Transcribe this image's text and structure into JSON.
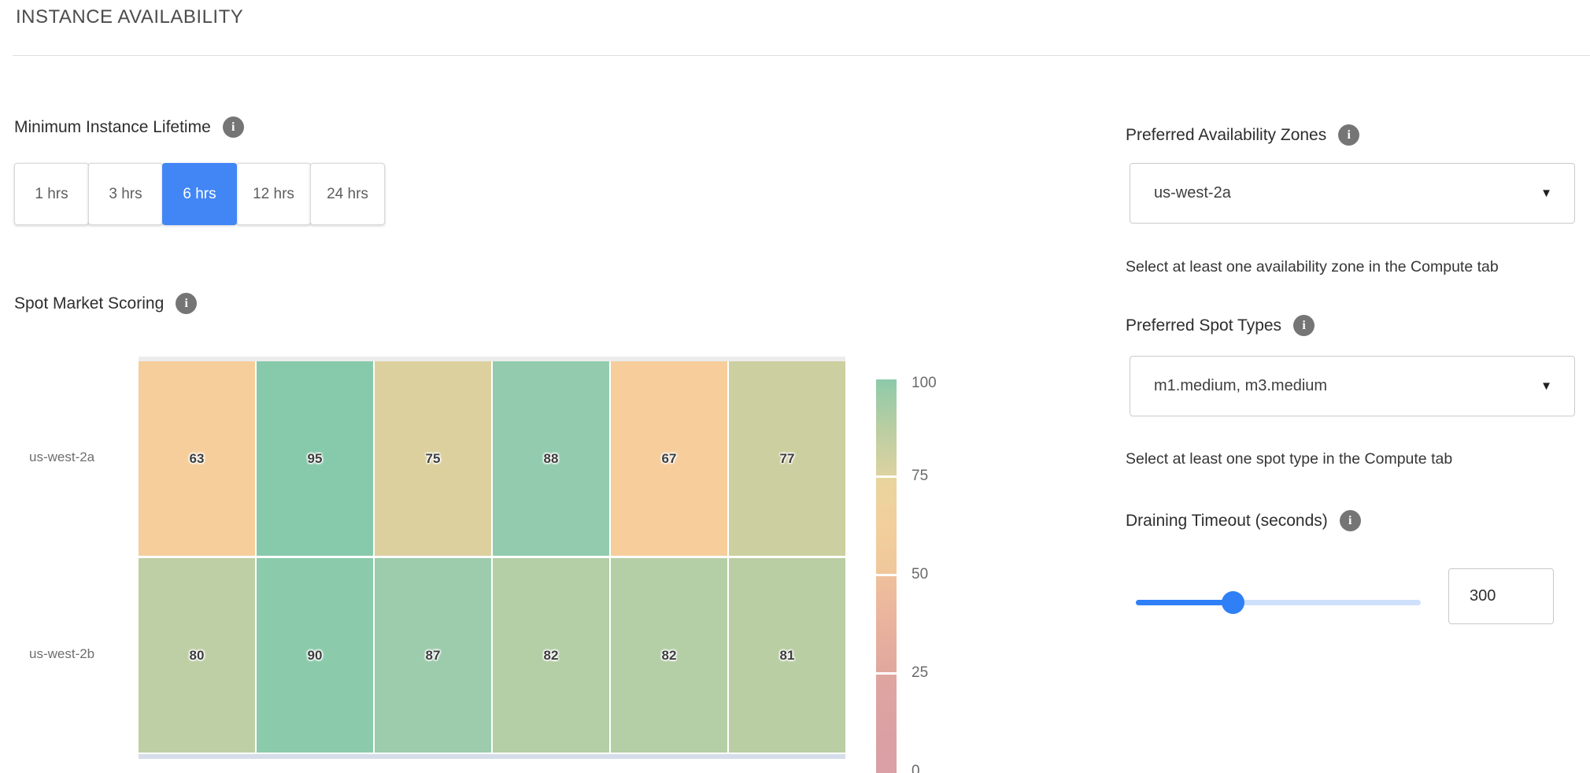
{
  "header": {
    "title": "INSTANCE AVAILABILITY"
  },
  "minimum_instance_lifetime": {
    "label": "Minimum Instance Lifetime",
    "options": [
      {
        "label": "1 hrs",
        "selected": false
      },
      {
        "label": "3 hrs",
        "selected": false
      },
      {
        "label": "6 hrs",
        "selected": true
      },
      {
        "label": "12 hrs",
        "selected": false
      },
      {
        "label": "24 hrs",
        "selected": false
      }
    ]
  },
  "spot_market_scoring": {
    "label": "Spot Market Scoring"
  },
  "chart_data": {
    "type": "heatmap",
    "title": "Spot Market Scoring",
    "rows": [
      "us-west-2a",
      "us-west-2b"
    ],
    "values": [
      [
        63,
        95,
        75,
        88,
        67,
        77
      ],
      [
        80,
        90,
        87,
        82,
        82,
        81
      ]
    ],
    "cell_colors": [
      [
        "#F6CE9B",
        "#87C9AB",
        "#DCD09F",
        "#92CBAE",
        "#F6CD9B",
        "#CCCF9F"
      ],
      [
        "#BECFA5",
        "#8BCBAC",
        "#9CCCAC",
        "#B4CEA6",
        "#B4CEA6",
        "#B9CEA3"
      ]
    ],
    "value_range": [
      0,
      100
    ],
    "colorbar": {
      "ticks": [
        "100",
        "75",
        "50",
        "25",
        "0"
      ],
      "segments": [
        [
          "#8DCAAA",
          "#B9CEA2",
          "#DCD2A0"
        ],
        [
          "#E8D49E",
          "#F2CF9C",
          "#F0C79B"
        ],
        [
          "#EFC09C",
          "#E9B29D",
          "#E0A89E"
        ],
        [
          "#DFA6A0",
          "#DBA0A4",
          "#D89FA6"
        ]
      ]
    }
  },
  "preferred_availability_zones": {
    "label": "Preferred Availability Zones",
    "value": "us-west-2a",
    "helper": "Select at least one availability zone in the Compute tab"
  },
  "preferred_spot_types": {
    "label": "Preferred Spot Types",
    "value": "m1.medium, m3.medium",
    "helper": "Select at least one spot type in the Compute tab"
  },
  "draining_timeout": {
    "label": "Draining Timeout (seconds)",
    "value": "300",
    "slider_percent": 34
  },
  "colors": {
    "accent_blue": "#4286F5",
    "slider_blue": "#2F80F7",
    "slider_track_light": "#CFE0FB",
    "info_icon_gray": "#757575"
  }
}
